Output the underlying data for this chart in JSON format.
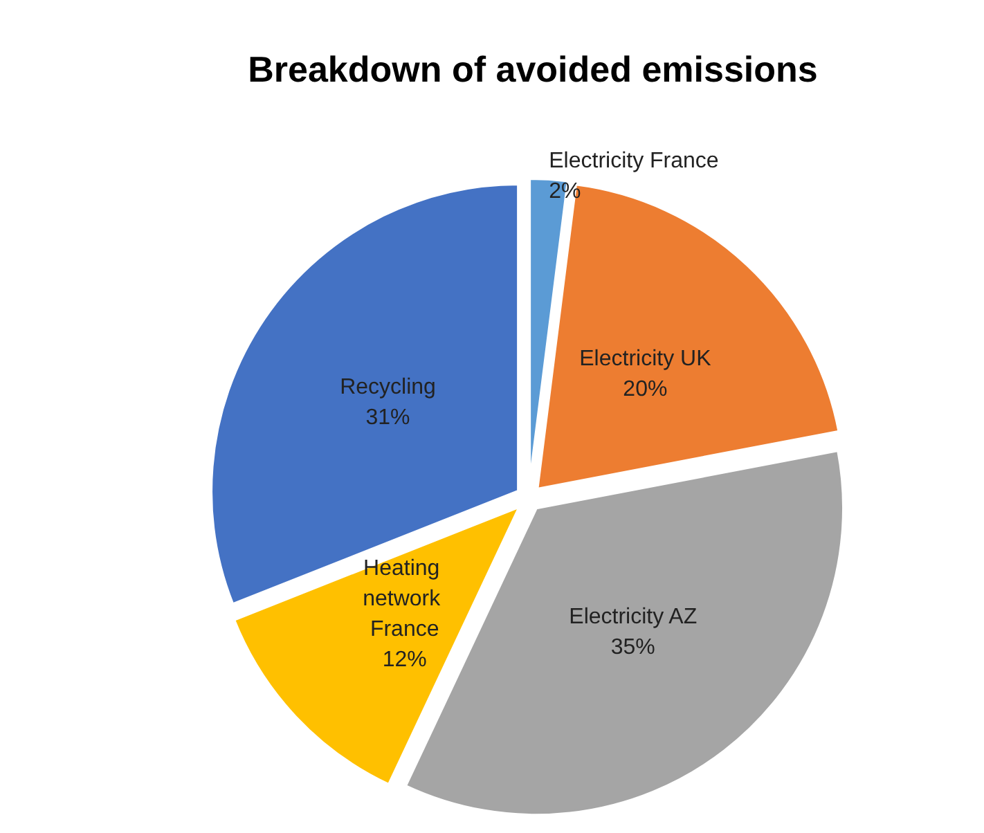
{
  "chart_data": {
    "type": "pie",
    "title": "Breakdown of avoided emissions",
    "categories": [
      "Electricity France",
      "Electricity UK",
      "Electricity AZ",
      "Heating network France",
      "Recycling"
    ],
    "values": [
      2,
      20,
      35,
      12,
      31
    ],
    "value_labels": [
      "2%",
      "20%",
      "35%",
      "12%",
      "31%"
    ],
    "colors": [
      "#5b9bd5",
      "#ed7d31",
      "#a5a5a5",
      "#ffc000",
      "#4472c4"
    ],
    "legend": false
  }
}
